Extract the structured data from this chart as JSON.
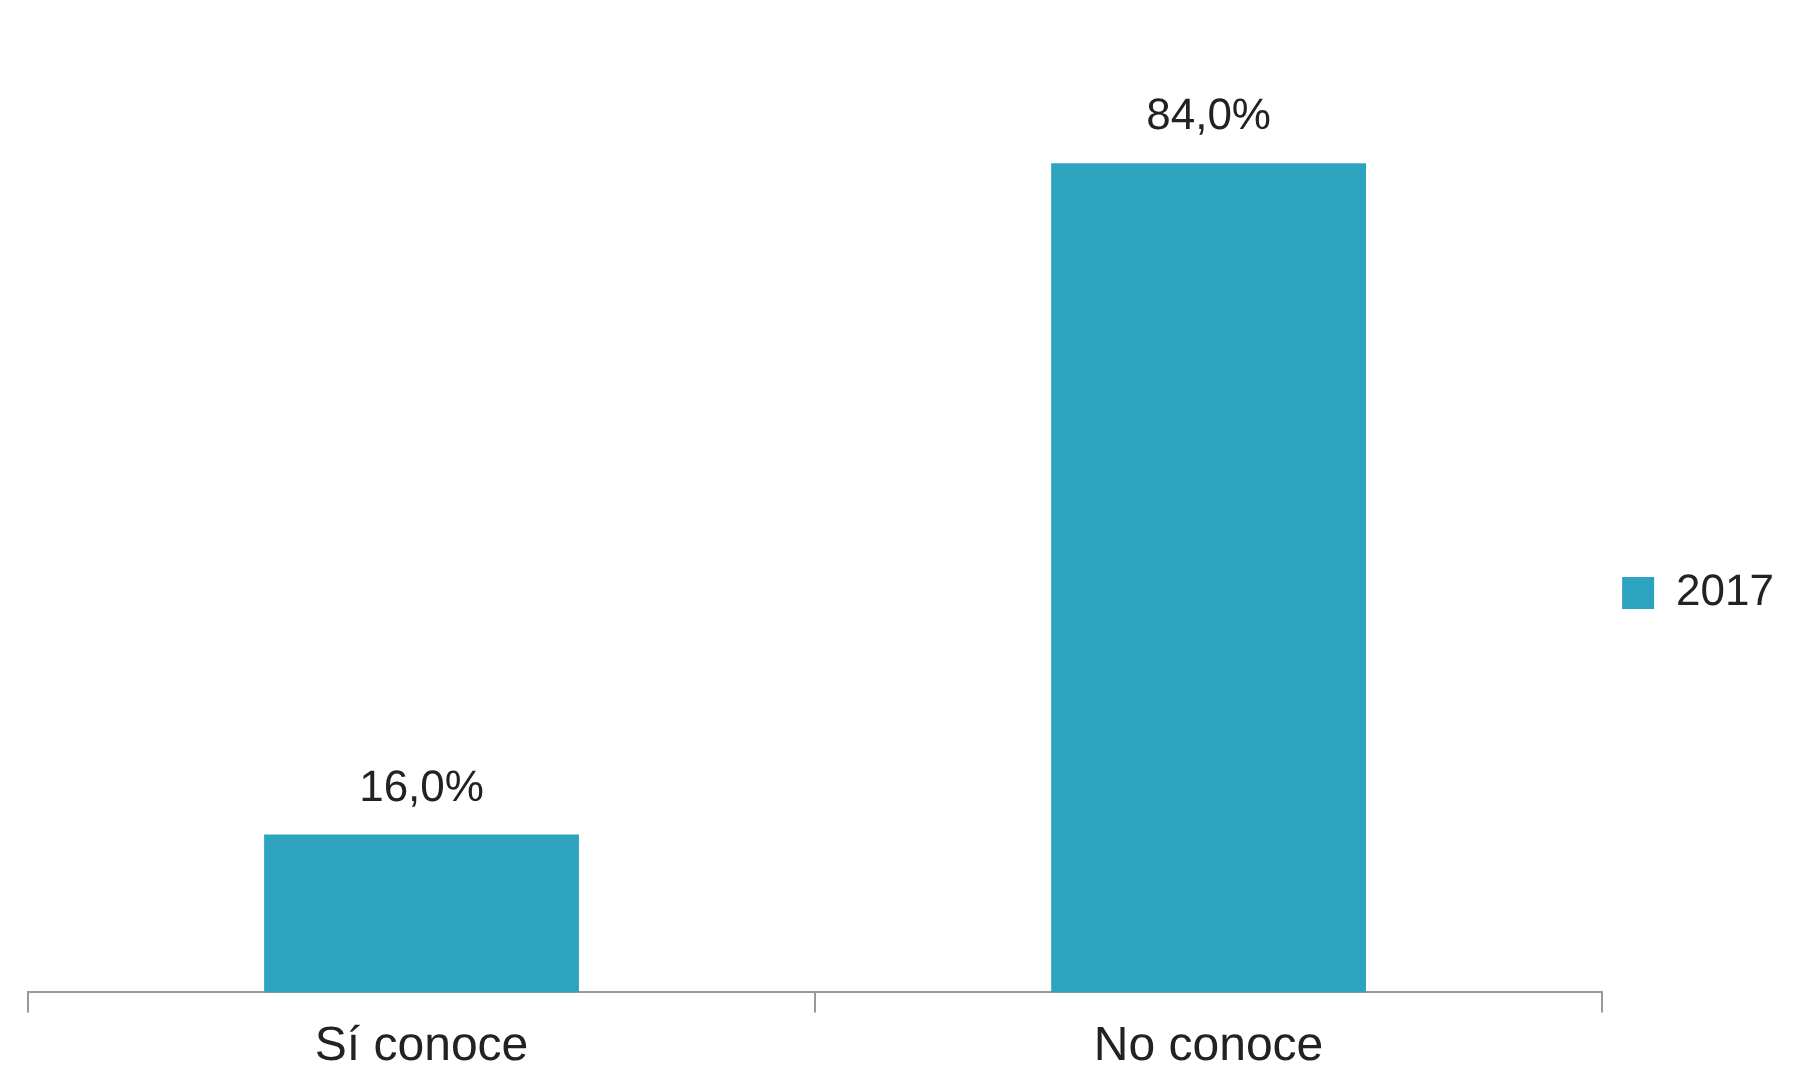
{
  "chart_data": {
    "type": "bar",
    "categories": [
      "Sí conoce",
      "No conoce"
    ],
    "series": [
      {
        "name": "2017",
        "color": "#2ea3c0",
        "values": [
          16.0,
          84.0
        ],
        "value_labels": [
          "16,0%",
          "84,0%"
        ]
      }
    ],
    "legend": "right"
  }
}
